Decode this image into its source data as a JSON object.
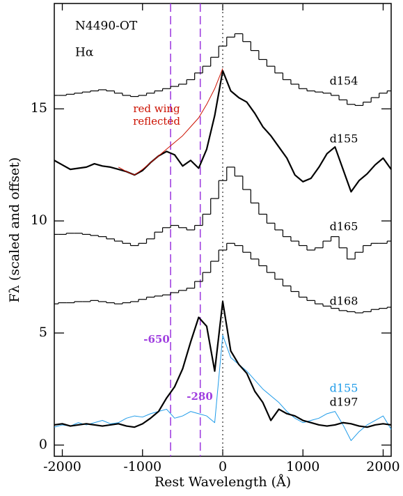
{
  "chart_data": {
    "type": "line",
    "title": "N4490-OT",
    "subtitle": "Hα",
    "x_label": "Rest Wavelength (Å)",
    "y_label": "Fλ (scaled and offset)",
    "xlim": [
      -2100,
      2100
    ],
    "ylim": [
      -0.5,
      19.7
    ],
    "xticks": [
      -2000,
      -1000,
      0,
      1000,
      2000
    ],
    "yticks": [
      0,
      5,
      10,
      15
    ],
    "x": [
      -2100,
      -2000,
      -1900,
      -1800,
      -1700,
      -1600,
      -1500,
      -1400,
      -1300,
      -1200,
      -1100,
      -1000,
      -900,
      -800,
      -700,
      -600,
      -500,
      -400,
      -300,
      -200,
      -100,
      0,
      100,
      200,
      300,
      400,
      500,
      600,
      700,
      800,
      900,
      1000,
      1100,
      1200,
      1300,
      1400,
      1500,
      1600,
      1700,
      1800,
      1900,
      2000,
      2100
    ],
    "vlines": [
      {
        "x": -650,
        "label": "-650",
        "color": "#a040e0",
        "style": "dashed"
      },
      {
        "x": -280,
        "label": "-280",
        "color": "#a040e0",
        "style": "dashed"
      },
      {
        "x": 0,
        "color": "#555555",
        "style": "dotted"
      }
    ],
    "series": [
      {
        "name": "d154",
        "color": "#000000",
        "width": 1.2,
        "step": true,
        "values": [
          15.6,
          15.6,
          15.65,
          15.7,
          15.75,
          15.8,
          15.85,
          15.8,
          15.7,
          15.6,
          15.55,
          15.6,
          15.7,
          15.8,
          15.9,
          16.0,
          16.1,
          16.3,
          16.6,
          16.9,
          17.3,
          17.8,
          18.2,
          18.35,
          18.0,
          17.6,
          17.2,
          16.9,
          16.6,
          16.3,
          16.1,
          15.9,
          15.8,
          15.75,
          15.7,
          15.6,
          15.4,
          15.2,
          15.15,
          15.3,
          15.5,
          15.7,
          15.8
        ]
      },
      {
        "name": "d155",
        "color": "#000000",
        "width": 2.2,
        "step": false,
        "values": [
          12.7,
          12.5,
          12.3,
          12.35,
          12.4,
          12.55,
          12.45,
          12.4,
          12.3,
          12.2,
          12.05,
          12.25,
          12.6,
          12.9,
          13.1,
          12.95,
          12.45,
          12.7,
          12.35,
          13.2,
          14.7,
          16.7,
          15.8,
          15.5,
          15.3,
          14.8,
          14.2,
          13.8,
          13.3,
          12.8,
          12.05,
          11.75,
          11.9,
          12.4,
          13.0,
          13.3,
          12.3,
          11.3,
          11.8,
          12.1,
          12.5,
          12.8,
          12.3
        ]
      },
      {
        "label_lines": [
          "red wing",
          "reflected"
        ],
        "color": "#cc1100",
        "width": 1,
        "step": false,
        "x": [
          -1300,
          -1200,
          -1100,
          -1000,
          -900,
          -800,
          -700,
          -600,
          -500,
          -400,
          -300,
          -200,
          -100,
          0
        ],
        "values": [
          12.4,
          12.2,
          12.05,
          12.3,
          12.6,
          12.9,
          13.2,
          13.5,
          13.8,
          14.2,
          14.6,
          15.2,
          15.9,
          16.8
        ]
      },
      {
        "name": "d165",
        "color": "#000000",
        "width": 1.2,
        "step": true,
        "values": [
          9.4,
          9.4,
          9.45,
          9.45,
          9.4,
          9.35,
          9.3,
          9.2,
          9.1,
          9.0,
          8.9,
          9.0,
          9.2,
          9.5,
          9.7,
          9.8,
          9.7,
          9.6,
          9.8,
          10.3,
          11.0,
          11.8,
          12.4,
          12.0,
          11.4,
          10.8,
          10.3,
          9.9,
          9.6,
          9.3,
          9.1,
          8.9,
          8.7,
          8.8,
          9.1,
          9.3,
          8.8,
          8.3,
          8.6,
          8.9,
          9.0,
          9.0,
          9.1
        ]
      },
      {
        "name": "d168",
        "color": "#000000",
        "width": 1.2,
        "step": true,
        "values": [
          6.3,
          6.35,
          6.35,
          6.4,
          6.4,
          6.45,
          6.4,
          6.35,
          6.3,
          6.35,
          6.4,
          6.5,
          6.6,
          6.65,
          6.7,
          6.8,
          6.9,
          7.0,
          7.3,
          7.7,
          8.2,
          8.7,
          9.0,
          8.9,
          8.6,
          8.3,
          8.0,
          7.7,
          7.4,
          7.1,
          6.85,
          6.6,
          6.45,
          6.3,
          6.2,
          6.1,
          6.0,
          5.95,
          5.9,
          5.95,
          6.05,
          6.1,
          6.15
        ]
      },
      {
        "name": "d155",
        "color": "#1e9be9",
        "width": 1,
        "step": false,
        "values": [
          0.8,
          0.9,
          0.85,
          1.0,
          0.9,
          1.0,
          1.1,
          0.95,
          1.0,
          1.2,
          1.3,
          1.25,
          1.4,
          1.5,
          1.6,
          1.2,
          1.3,
          1.5,
          1.4,
          1.3,
          1.0,
          4.9,
          3.9,
          3.6,
          3.3,
          2.9,
          2.5,
          2.2,
          1.9,
          1.5,
          1.2,
          1.0,
          1.1,
          1.2,
          1.4,
          1.5,
          0.9,
          0.2,
          0.6,
          0.9,
          1.1,
          1.3,
          0.7
        ]
      },
      {
        "name": "d197",
        "color": "#000000",
        "width": 2.2,
        "step": false,
        "values": [
          0.9,
          0.95,
          0.85,
          0.9,
          0.95,
          0.9,
          0.85,
          0.9,
          0.95,
          0.85,
          0.8,
          0.95,
          1.2,
          1.5,
          2.1,
          2.6,
          3.4,
          4.6,
          5.7,
          5.3,
          3.3,
          6.4,
          4.2,
          3.6,
          3.2,
          2.4,
          1.9,
          1.1,
          1.6,
          1.4,
          1.3,
          1.1,
          1.0,
          0.9,
          0.85,
          0.9,
          1.0,
          0.95,
          0.85,
          0.8,
          0.9,
          0.95,
          0.9
        ]
      }
    ]
  }
}
